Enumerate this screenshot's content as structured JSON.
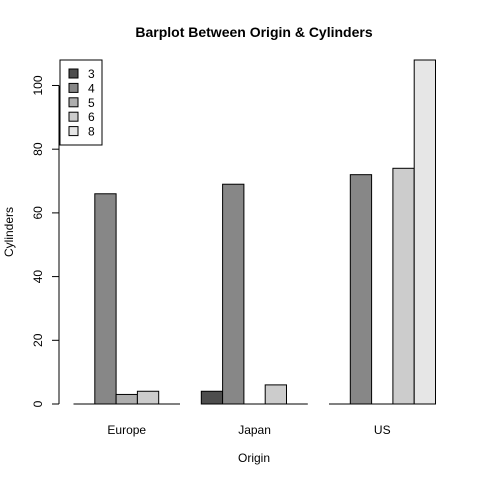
{
  "chart_data": {
    "type": "bar",
    "mode": "grouped",
    "title": "Barplot Between Origin & Cylinders",
    "xlabel": "Origin",
    "ylabel": "Cylinders",
    "categories": [
      "Europe",
      "Japan",
      "US"
    ],
    "ylim": [
      0,
      108
    ],
    "yticks": [
      0,
      20,
      40,
      60,
      80,
      100
    ],
    "grid": false,
    "legend_position": "top-left",
    "series": [
      {
        "name": "3",
        "values": [
          0,
          4,
          0
        ],
        "color": "#4d4d4d"
      },
      {
        "name": "4",
        "values": [
          66,
          69,
          72
        ],
        "color": "#878787"
      },
      {
        "name": "5",
        "values": [
          3,
          0,
          0
        ],
        "color": "#aeaeae"
      },
      {
        "name": "6",
        "values": [
          4,
          6,
          74
        ],
        "color": "#cccccc"
      },
      {
        "name": "8",
        "values": [
          0,
          0,
          108
        ],
        "color": "#e6e6e6"
      }
    ]
  }
}
